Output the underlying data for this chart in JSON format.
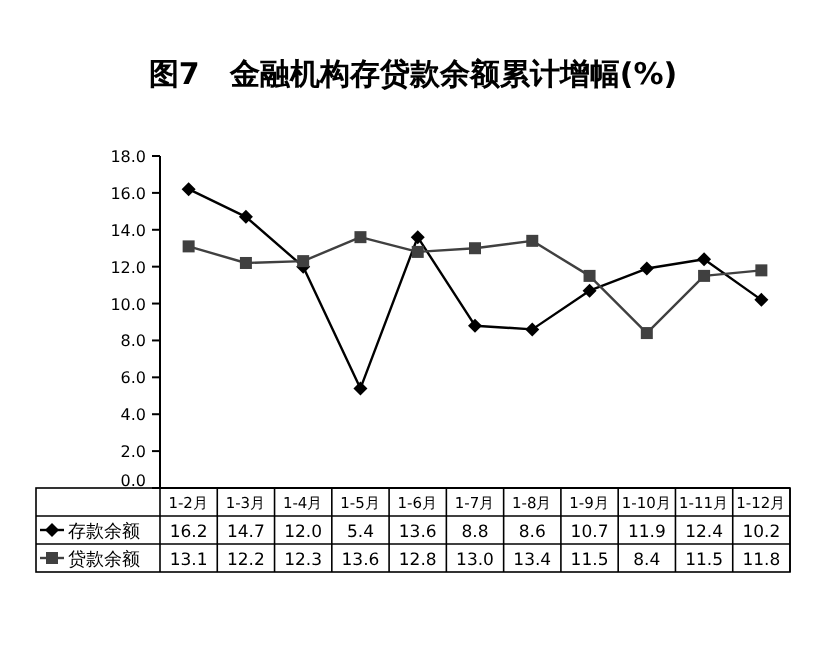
{
  "chart_data": {
    "type": "line",
    "title": "图7　金融机构存贷款余额累计增幅(%)",
    "categories": [
      "1-2月",
      "1-3月",
      "1-4月",
      "1-5月",
      "1-6月",
      "1-7月",
      "1-8月",
      "1-9月",
      "1-10月",
      "1-11月",
      "1-12月"
    ],
    "series": [
      {
        "name": "存款余额",
        "color": "#000000",
        "marker": "diamond",
        "values": [
          16.2,
          14.7,
          12.0,
          5.4,
          13.6,
          8.8,
          8.6,
          10.7,
          11.9,
          12.4,
          10.2
        ],
        "value_labels": [
          "16.2",
          "14.7",
          "12.0",
          "5.4",
          "13.6",
          "8.8",
          "8.6",
          "10.7",
          "11.9",
          "12.4",
          "10.2"
        ]
      },
      {
        "name": "贷款余额",
        "color": "#404040",
        "marker": "square",
        "values": [
          13.1,
          12.2,
          12.3,
          13.6,
          12.8,
          13.0,
          13.4,
          11.5,
          8.4,
          11.5,
          11.8
        ],
        "value_labels": [
          "13.1",
          "12.2",
          "12.3",
          "13.6",
          "12.8",
          "13.0",
          "13.4",
          "11.5",
          "8.4",
          "11.5",
          "11.8"
        ]
      }
    ],
    "ylim": [
      0,
      18
    ],
    "yticks": [
      {
        "value": 0,
        "label": "0.0"
      },
      {
        "value": 2,
        "label": "2.0"
      },
      {
        "value": 4,
        "label": "4.0"
      },
      {
        "value": 6,
        "label": "6.0"
      },
      {
        "value": 8,
        "label": "8.0"
      },
      {
        "value": 10,
        "label": "10.0"
      },
      {
        "value": 12,
        "label": "12.0"
      },
      {
        "value": 14,
        "label": "14.0"
      },
      {
        "value": 16,
        "label": "16.0"
      },
      {
        "value": 18,
        "label": "18.0"
      }
    ],
    "legend": "bottom left",
    "line_style": "solid"
  }
}
